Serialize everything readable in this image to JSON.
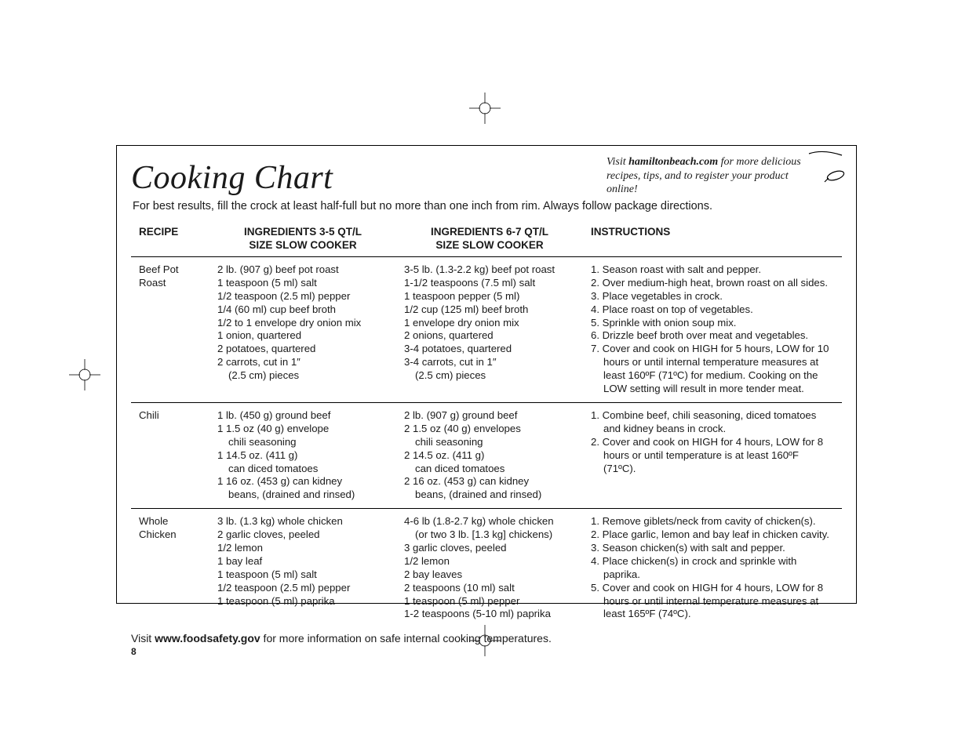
{
  "title": "Cooking Chart",
  "promo": {
    "prefix": "Visit ",
    "bold": "hamiltonbeach.com",
    "suffix": " for more delicious recipes, tips, and to register your product online!"
  },
  "subtitle": "For best results, fill the crock at least half-full but no more than one inch from rim. Always follow package directions.",
  "headers": {
    "recipe": "RECIPE",
    "ing35_line1": "INGREDIENTS 3-5 QT/L",
    "ing35_line2": "SIZE SLOW COOKER",
    "ing67_line1": "INGREDIENTS 6-7 QT/L",
    "ing67_line2": "SIZE SLOW COOKER",
    "instructions": "INSTRUCTIONS"
  },
  "rows": [
    {
      "recipe": "Beef Pot Roast",
      "ing35": [
        "2 lb. (907 g) beef pot roast",
        "1 teaspoon (5 ml) salt",
        "1/2 teaspoon (2.5 ml) pepper",
        "1/4 (60 ml) cup beef broth",
        "1/2 to 1 envelope dry onion mix",
        "1 onion, quartered",
        "2 potatoes, quartered",
        "2 carrots, cut in 1″",
        "   (2.5 cm) pieces"
      ],
      "ing67": [
        "3-5 lb. (1.3-2.2 kg) beef pot roast",
        "1-1/2 teaspoons (7.5 ml) salt",
        "1 teaspoon pepper (5 ml)",
        "1/2 cup (125 ml) beef broth",
        "1 envelope dry onion mix",
        "2 onions, quartered",
        "3-4 potatoes, quartered",
        "3-4 carrots, cut in 1″",
        "   (2.5 cm) pieces"
      ],
      "instructions": [
        "1. Season roast with salt and pepper.",
        "2. Over medium-high heat, brown roast on all sides.",
        "3. Place vegetables in crock.",
        "4. Place roast on top of vegetables.",
        "5. Sprinkle with onion soup mix.",
        "6. Drizzle beef broth over meat and vegetables.",
        "7. Cover and cook on HIGH for 5 hours, LOW for 10 hours or until internal temperature measures at least 160ºF (71ºC) for medium. Cooking on the LOW setting will result in more tender meat."
      ]
    },
    {
      "recipe": "Chili",
      "ing35": [
        "1 lb. (450 g) ground beef",
        "1 1.5 oz (40 g) envelope",
        "   chili seasoning",
        "1 14.5 oz. (411 g)",
        "   can diced tomatoes",
        "1 16 oz. (453 g) can kidney",
        "   beans, (drained and rinsed)"
      ],
      "ing67": [
        "2 lb. (907 g) ground beef",
        "2 1.5 oz (40 g) envelopes",
        "   chili seasoning",
        "2 14.5 oz. (411 g)",
        "   can diced tomatoes",
        "2 16 oz. (453 g) can kidney",
        "   beans, (drained and rinsed)"
      ],
      "instructions": [
        "1. Combine beef, chili seasoning, diced tomatoes and kidney beans in crock.",
        "2. Cover and cook on HIGH for 4 hours, LOW for 8 hours or until temperature is at least 160ºF (71ºC)."
      ]
    },
    {
      "recipe": "Whole Chicken",
      "ing35": [
        "3 lb. (1.3 kg) whole chicken",
        "2 garlic cloves, peeled",
        "1/2 lemon",
        "1 bay leaf",
        "1 teaspoon (5 ml) salt",
        "1/2 teaspoon (2.5 ml) pepper",
        "1 teaspoon (5 ml) paprika"
      ],
      "ing67": [
        "4-6 lb (1.8-2.7 kg) whole chicken",
        "   (or two 3 lb. [1.3 kg] chickens)",
        "3 garlic cloves, peeled",
        "1/2 lemon",
        "2 bay leaves",
        "2 teaspoons (10 ml) salt",
        "1 teaspoon (5 ml) pepper",
        "1-2 teaspoons (5-10 ml) paprika"
      ],
      "instructions": [
        "1. Remove giblets/neck from cavity of chicken(s).",
        "2. Place garlic, lemon and bay leaf in chicken cavity.",
        "3. Season chicken(s) with salt and pepper.",
        "4. Place chicken(s) in crock and sprinkle with paprika.",
        "5. Cover and cook on HIGH for 4 hours, LOW for 8 hours or until internal temperature measures at least 165ºF (74ºC)."
      ]
    }
  ],
  "footer": {
    "prefix": "Visit ",
    "bold": "www.foodsafety.gov",
    "suffix": " for more information on safe internal cooking temperatures."
  },
  "page_num": "8"
}
